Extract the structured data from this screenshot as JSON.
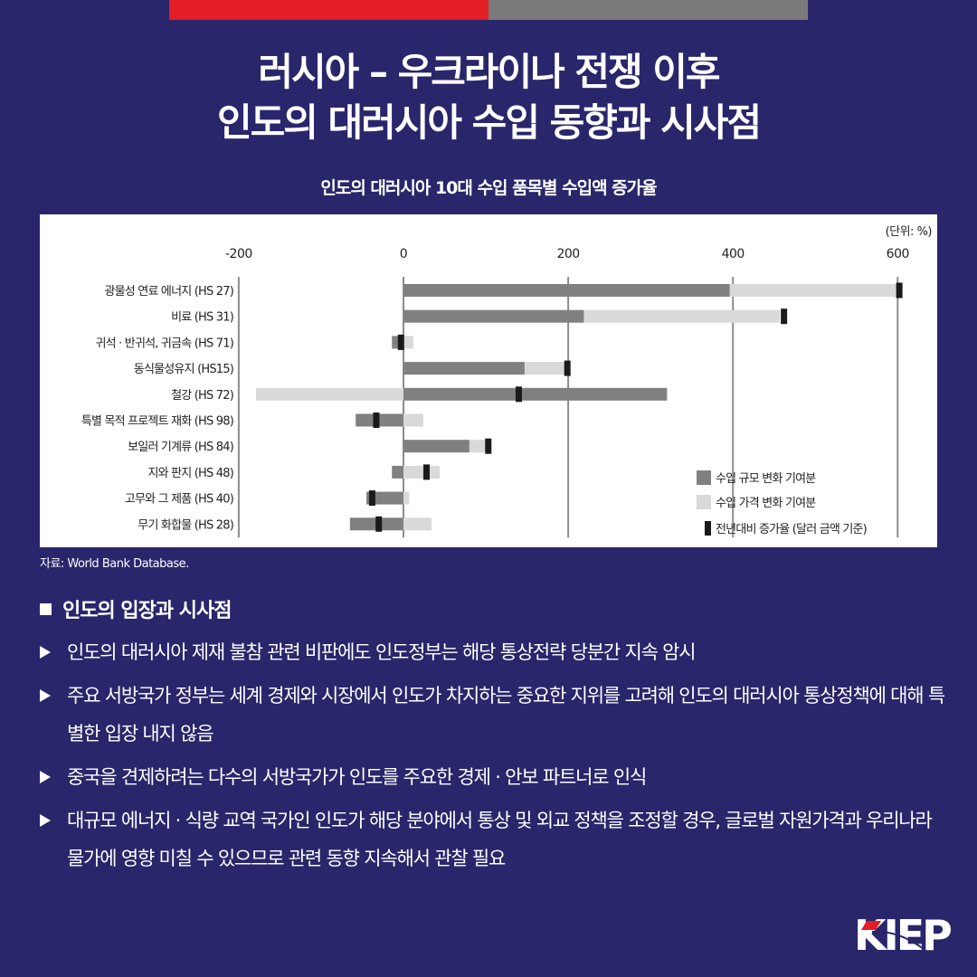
{
  "header": {
    "title_line1": "러시아 – 우크라이나 전쟁 이후",
    "title_line2": "인도의 대러시아 수입 동향과 시사점",
    "accent_red": "#e31e24",
    "accent_gray": "#7a7a7a",
    "background": "#29266b"
  },
  "chart_data": {
    "type": "bar",
    "orientation": "horizontal",
    "title": "인도의 대러시아 10대 수입 품목별 수입액 증가율",
    "unit": "(단위: %)",
    "xlim": [
      -200,
      600
    ],
    "xticks": [
      "-200",
      "0",
      "200",
      "400",
      "600"
    ],
    "xtick_values": [
      -200,
      0,
      200,
      400,
      600
    ],
    "grid": true,
    "legend_position": "bottom-right",
    "categories": [
      "광물성 연료 에너지 (HS 27)",
      "비료 (HS 31)",
      "귀석 · 반귀석, 귀금속 (HS 71)",
      "동식물성유지 (HS15)",
      "철강 (HS 72)",
      "특별 목적 프로젝트 재화 (HS 98)",
      "보일러 기계류 (HS 84)",
      "지와 판지 (HS 48)",
      "고무와 그 제품 (HS 40)",
      "무기 화합물 (HS 28)"
    ],
    "series": [
      {
        "name": "수입 규모 변화 기여분",
        "color": "#808080",
        "values": [
          396,
          219,
          -14,
          147,
          320,
          -58,
          80,
          -14,
          -45,
          -65
        ]
      },
      {
        "name": "수입 가격 변화 기여분",
        "color": "#d9d9d9",
        "values": [
          206,
          238,
          12,
          50,
          -179,
          24,
          20,
          44,
          7,
          34
        ]
      },
      {
        "name": "전년대비 증가율 (달러 금액 기준)",
        "color": "#1a1a1a",
        "marker": true,
        "values": [
          602,
          462,
          -3,
          199,
          140,
          -33,
          103,
          28,
          -38,
          -30
        ]
      }
    ]
  },
  "source": "자료: World Bank Database.",
  "section": {
    "heading": "인도의 입장과 시사점",
    "bullets": [
      "인도의 대러시아 제재 불참 관련 비판에도 인도정부는 해당 통상전략 당분간 지속 암시",
      "주요 서방국가 정부는 세계 경제와 시장에서 인도가 차지하는 중요한 지위를 고려해 인도의 대러시아 통상정책에 대해 특별한 입장 내지 않음",
      "중국을 견제하려는 다수의 서방국가가 인도를 주요한 경제 · 안보 파트너로 인식",
      "대규모 에너지 · 식량 교역 국가인 인도가 해당 분야에서 통상 및 외교 정책을 조정할 경우, 글로벌 자원가격과 우리나라 물가에 영향 미칠 수 있으므로 관련 동향 지속해서 관찰 필요"
    ]
  },
  "logo": {
    "text": "KIEP"
  }
}
